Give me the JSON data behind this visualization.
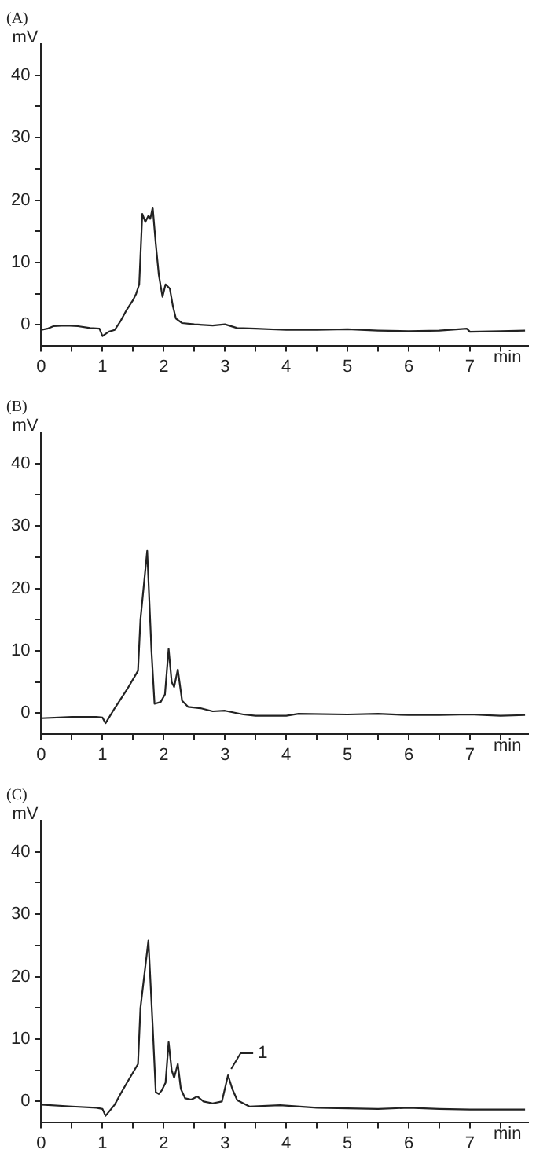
{
  "chart_data": [
    {
      "type": "line",
      "title": "(A)",
      "xlabel": "min",
      "ylabel": "mV",
      "color": "#222222",
      "marker": "none",
      "xlim": [
        0,
        7.95
      ],
      "ylim": [
        -3.3,
        45
      ],
      "xticks": [
        0,
        {
          "value": 0.5,
          "label": null
        },
        1,
        {
          "value": 1.5,
          "label": null
        },
        2,
        {
          "value": 2.5,
          "label": null
        },
        3,
        {
          "value": 3.5,
          "label": null
        },
        4,
        {
          "value": 4.5,
          "label": null
        },
        5,
        {
          "value": 5.5,
          "label": null
        },
        6,
        {
          "value": 6.5,
          "label": null
        },
        7,
        {
          "value": 7.5,
          "label": null
        }
      ],
      "yticks": [
        0,
        {
          "value": 5,
          "label": null
        },
        10,
        {
          "value": 15,
          "label": null
        },
        20,
        {
          "value": 25,
          "label": null
        },
        30,
        {
          "value": 35,
          "label": null
        },
        40
      ],
      "x": [
        0,
        0.1,
        0.2,
        0.4,
        0.6,
        0.8,
        0.95,
        1.0,
        1.1,
        1.2,
        1.3,
        1.4,
        1.5,
        1.55,
        1.6,
        1.65,
        1.7,
        1.75,
        1.78,
        1.82,
        1.87,
        1.92,
        1.98,
        2.03,
        2.1,
        2.15,
        2.2,
        2.3,
        2.5,
        2.8,
        3.0,
        3.2,
        3.5,
        4,
        4.5,
        5,
        5.5,
        6,
        6.5,
        6.95,
        7.0,
        7.5,
        7.9
      ],
      "values": [
        -0.8,
        -0.6,
        -0.2,
        -0.1,
        -0.2,
        -0.5,
        -0.6,
        -1.8,
        -1.1,
        -0.8,
        0.7,
        2.5,
        4,
        5,
        6.5,
        17.8,
        16.5,
        17.5,
        17,
        18.8,
        13,
        8,
        4.5,
        6.5,
        5.8,
        3,
        1,
        0.3,
        0.1,
        -0.1,
        0.1,
        -0.5,
        -0.6,
        -0.8,
        -0.8,
        -0.7,
        -0.9,
        -1.0,
        -0.9,
        -0.6,
        -1.1,
        -1.0,
        -0.9
      ]
    },
    {
      "type": "line",
      "title": "(B)",
      "xlabel": "min",
      "ylabel": "mV",
      "color": "#222222",
      "marker": "none",
      "xlim": [
        0,
        7.95
      ],
      "ylim": [
        -3.3,
        45
      ],
      "xticks": [
        0,
        {
          "value": 0.5,
          "label": null
        },
        1,
        {
          "value": 1.5,
          "label": null
        },
        2,
        {
          "value": 2.5,
          "label": null
        },
        3,
        {
          "value": 3.5,
          "label": null
        },
        4,
        {
          "value": 4.5,
          "label": null
        },
        5,
        {
          "value": 5.5,
          "label": null
        },
        6,
        {
          "value": 6.5,
          "label": null
        },
        7,
        {
          "value": 7.5,
          "label": null
        }
      ],
      "yticks": [
        0,
        {
          "value": 5,
          "label": null
        },
        10,
        {
          "value": 15,
          "label": null
        },
        20,
        {
          "value": 25,
          "label": null
        },
        30,
        {
          "value": 35,
          "label": null
        },
        40
      ],
      "x": [
        0,
        0.5,
        0.9,
        1.0,
        1.05,
        1.2,
        1.4,
        1.58,
        1.62,
        1.73,
        1.8,
        1.85,
        1.95,
        2.02,
        2.08,
        2.13,
        2.17,
        2.23,
        2.3,
        2.4,
        2.6,
        2.8,
        3.0,
        3.3,
        3.5,
        4.0,
        4.2,
        5,
        5.5,
        6,
        6.5,
        7,
        7.5,
        7.9
      ],
      "values": [
        -0.8,
        -0.6,
        -0.6,
        -0.7,
        -1.6,
        0.8,
        3.8,
        6.8,
        15,
        26,
        10,
        1.5,
        1.8,
        3,
        10.3,
        5,
        4.2,
        7,
        2,
        1,
        0.8,
        0.3,
        0.4,
        -0.2,
        -0.4,
        -0.4,
        -0.1,
        -0.2,
        -0.1,
        -0.3,
        -0.3,
        -0.2,
        -0.4,
        -0.3
      ]
    },
    {
      "type": "line",
      "title": "(C)",
      "xlabel": "min",
      "ylabel": "mV",
      "color": "#222222",
      "marker": "none",
      "xlim": [
        0,
        7.95
      ],
      "ylim": [
        -3.3,
        45
      ],
      "xticks": [
        0,
        {
          "value": 0.5,
          "label": null
        },
        1,
        {
          "value": 1.5,
          "label": null
        },
        2,
        {
          "value": 2.5,
          "label": null
        },
        3,
        {
          "value": 3.5,
          "label": null
        },
        4,
        {
          "value": 4.5,
          "label": null
        },
        5,
        {
          "value": 5.5,
          "label": null
        },
        6,
        {
          "value": 6.5,
          "label": null
        },
        7,
        {
          "value": 7.5,
          "label": null
        }
      ],
      "yticks": [
        0,
        {
          "value": 5,
          "label": null
        },
        10,
        {
          "value": 15,
          "label": null
        },
        20,
        {
          "value": 25,
          "label": null
        },
        30,
        {
          "value": 35,
          "label": null
        },
        40
      ],
      "x": [
        0,
        0.5,
        0.9,
        1.0,
        1.05,
        1.2,
        1.3,
        1.4,
        1.58,
        1.62,
        1.75,
        1.82,
        1.87,
        1.92,
        1.97,
        2.03,
        2.08,
        2.13,
        2.17,
        2.23,
        2.28,
        2.35,
        2.45,
        2.55,
        2.65,
        2.8,
        2.95,
        3.05,
        3.12,
        3.2,
        3.4,
        3.9,
        4.5,
        5,
        5.5,
        6,
        6.5,
        7,
        7.9
      ],
      "values": [
        -0.5,
        -0.8,
        -1.0,
        -1.2,
        -2.3,
        -0.5,
        1.3,
        3,
        6,
        15,
        25.8,
        12,
        1.5,
        1.2,
        1.8,
        3,
        9.5,
        5,
        3.8,
        6,
        2,
        0.5,
        0.3,
        0.8,
        0,
        -0.3,
        0,
        4.2,
        2,
        0.2,
        -0.8,
        -0.6,
        -1.0,
        -1.1,
        -1.2,
        -1.0,
        -1.2,
        -1.3,
        -1.3
      ],
      "annotations": [
        {
          "text": "1",
          "x": 3.05,
          "y": 4.2
        }
      ]
    }
  ]
}
